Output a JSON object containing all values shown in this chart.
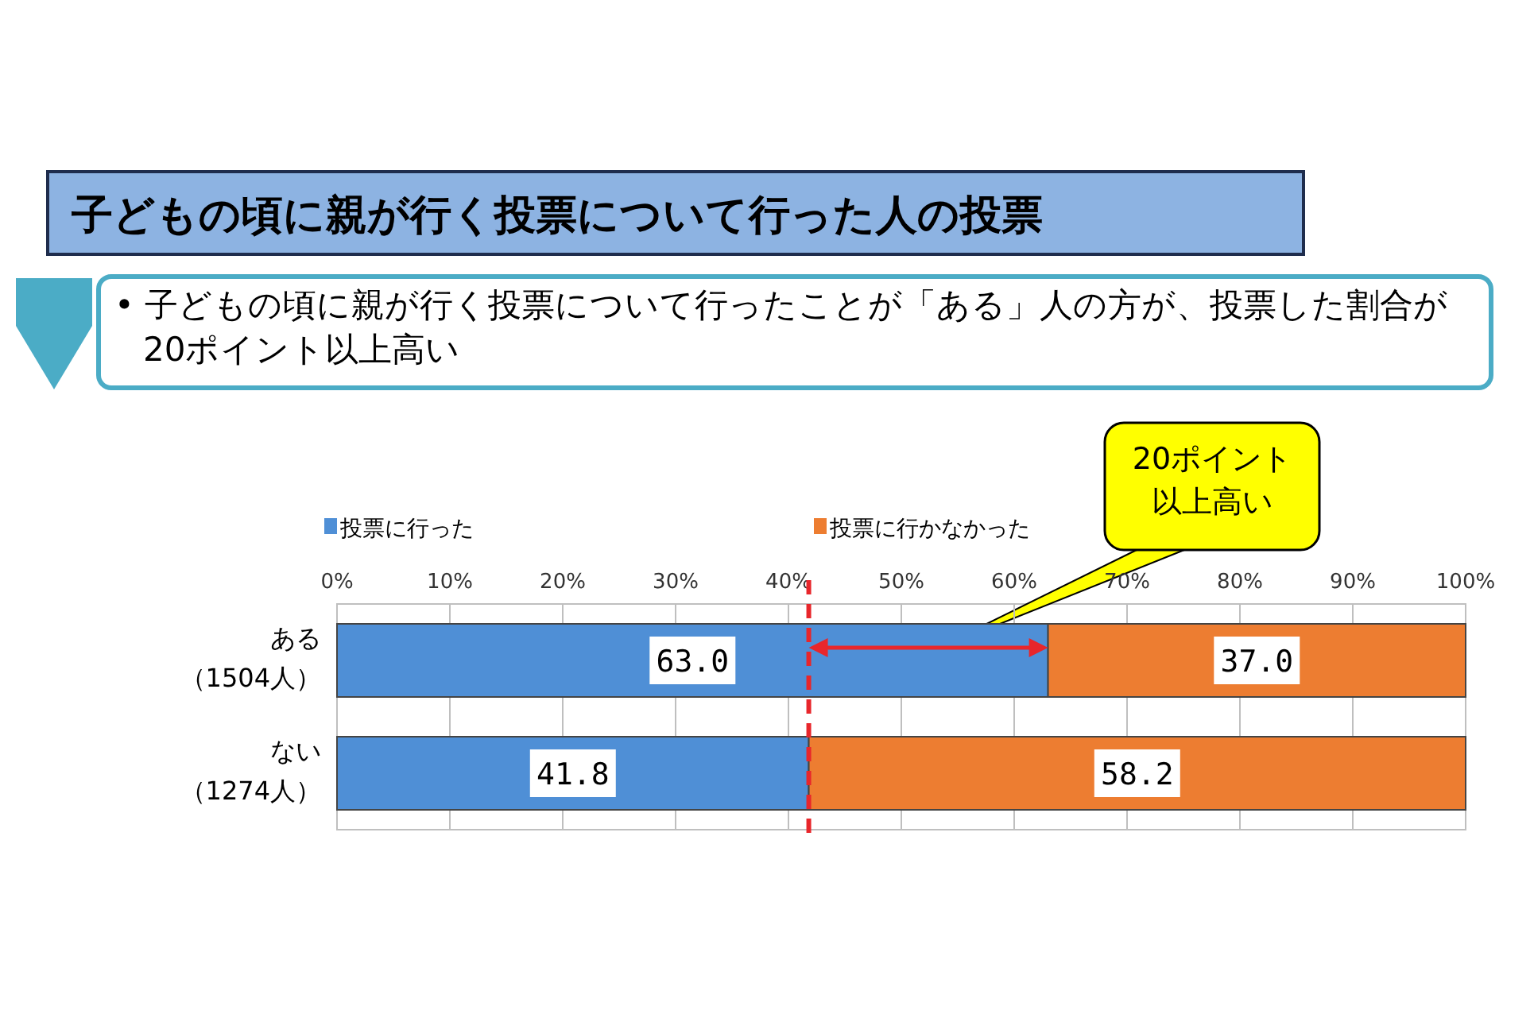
{
  "chart_data": {
    "type": "bar",
    "orientation": "horizontal",
    "stacked": true,
    "title": "子どもの頃に親が行く投票について行った人の投票",
    "subtitle": "• 子どもの頃に親が行く投票について行ったことが「ある」人の方が、投票した割合が20ポイント以上高い",
    "categories": [
      "ある（1504人）",
      "ない（1274人）"
    ],
    "series": [
      {
        "name": "投票に行った",
        "color": "#4f8fd6",
        "values": [
          63.0,
          41.8
        ],
        "value_labels": [
          "63.0",
          "41.8"
        ]
      },
      {
        "name": "投票に行かなかった",
        "color": "#ed7d31",
        "values": [
          37.0,
          58.2
        ],
        "value_labels": [
          "37.0",
          "58.2"
        ]
      }
    ],
    "xlim": [
      0,
      100
    ],
    "xticks": [
      {
        "value": 0,
        "label": "0%"
      },
      {
        "value": 10,
        "label": "10%"
      },
      {
        "value": 20,
        "label": "20%"
      },
      {
        "value": 30,
        "label": "30%"
      },
      {
        "value": 40,
        "label": "40%"
      },
      {
        "value": 50,
        "label": "50%"
      },
      {
        "value": 60,
        "label": "60%"
      },
      {
        "value": 70,
        "label": "70%"
      },
      {
        "value": 80,
        "label": "80%"
      },
      {
        "value": 90,
        "label": "90%"
      },
      {
        "value": 100,
        "label": "100%"
      }
    ],
    "grid": "x",
    "legend": "top",
    "ref_lines": [
      {
        "axis": "x",
        "value": 41.8,
        "color": "#e8262b",
        "line_style": "dashed"
      }
    ],
    "annotations": [
      "20ポイント以上高い"
    ]
  }
}
